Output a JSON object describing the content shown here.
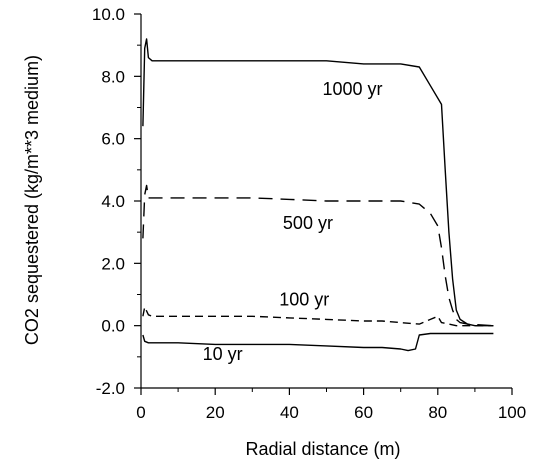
{
  "chart_data": {
    "type": "line",
    "xlabel": "Radial distance (m)",
    "ylabel": "CO2 sequestered (kg/m**3 medium)",
    "xlim": [
      0,
      100
    ],
    "ylim": [
      -2.0,
      10.0
    ],
    "x_ticks": [
      "0",
      "20",
      "40",
      "60",
      "80",
      "100"
    ],
    "y_ticks": [
      "-2.0",
      "0.0",
      "2.0",
      "4.0",
      "6.0",
      "8.0",
      "10.0"
    ],
    "grid": false,
    "series": [
      {
        "name": "1000 yr",
        "style": "solid",
        "x": [
          0.5,
          1.0,
          1.5,
          2.0,
          3,
          10,
          20,
          30,
          40,
          50,
          60,
          70,
          75,
          78,
          81,
          82,
          83,
          84,
          85,
          86,
          88,
          90,
          95
        ],
        "y": [
          6.4,
          8.9,
          9.2,
          8.6,
          8.5,
          8.5,
          8.5,
          8.5,
          8.5,
          8.5,
          8.4,
          8.4,
          8.3,
          7.7,
          7.1,
          5.0,
          3.0,
          1.5,
          0.5,
          0.2,
          0.05,
          0.0,
          0.0
        ]
      },
      {
        "name": "500 yr",
        "style": "long-dash",
        "x": [
          0.5,
          1.0,
          1.5,
          2.0,
          3,
          10,
          20,
          30,
          40,
          50,
          60,
          70,
          75,
          78,
          80,
          81,
          82,
          83,
          84,
          85,
          86,
          88,
          95
        ],
        "y": [
          2.8,
          4.2,
          4.5,
          4.1,
          4.1,
          4.1,
          4.1,
          4.1,
          4.05,
          4.0,
          4.0,
          4.0,
          3.9,
          3.6,
          3.2,
          2.5,
          1.6,
          0.9,
          0.5,
          0.2,
          0.1,
          0.05,
          0.0
        ]
      },
      {
        "name": "100 yr",
        "style": "short-dash",
        "x": [
          0.5,
          1.0,
          2.0,
          3,
          10,
          20,
          30,
          40,
          50,
          60,
          65,
          70,
          75,
          78,
          80,
          81,
          83,
          85,
          95
        ],
        "y": [
          0.3,
          0.6,
          0.35,
          0.3,
          0.3,
          0.3,
          0.3,
          0.25,
          0.2,
          0.15,
          0.15,
          0.1,
          0.05,
          0.2,
          0.3,
          0.1,
          0.05,
          0.0,
          0.0
        ]
      },
      {
        "name": "10 yr",
        "style": "solid",
        "x": [
          0.5,
          1.0,
          2.0,
          3,
          10,
          20,
          30,
          40,
          50,
          60,
          65,
          70,
          72,
          74,
          75,
          78,
          80,
          85,
          95
        ],
        "y": [
          -0.3,
          -0.5,
          -0.55,
          -0.55,
          -0.55,
          -0.6,
          -0.6,
          -0.6,
          -0.65,
          -0.7,
          -0.7,
          -0.75,
          -0.8,
          -0.75,
          -0.3,
          -0.25,
          -0.25,
          -0.25,
          -0.25
        ]
      }
    ],
    "annotations": [
      {
        "text": "1000 yr",
        "x": 57,
        "y": 7.4
      },
      {
        "text": "500 yr",
        "x": 45,
        "y": 3.1
      },
      {
        "text": "100 yr",
        "x": 44,
        "y": 0.65
      },
      {
        "text": "10 yr",
        "x": 22,
        "y": -1.1
      }
    ]
  }
}
